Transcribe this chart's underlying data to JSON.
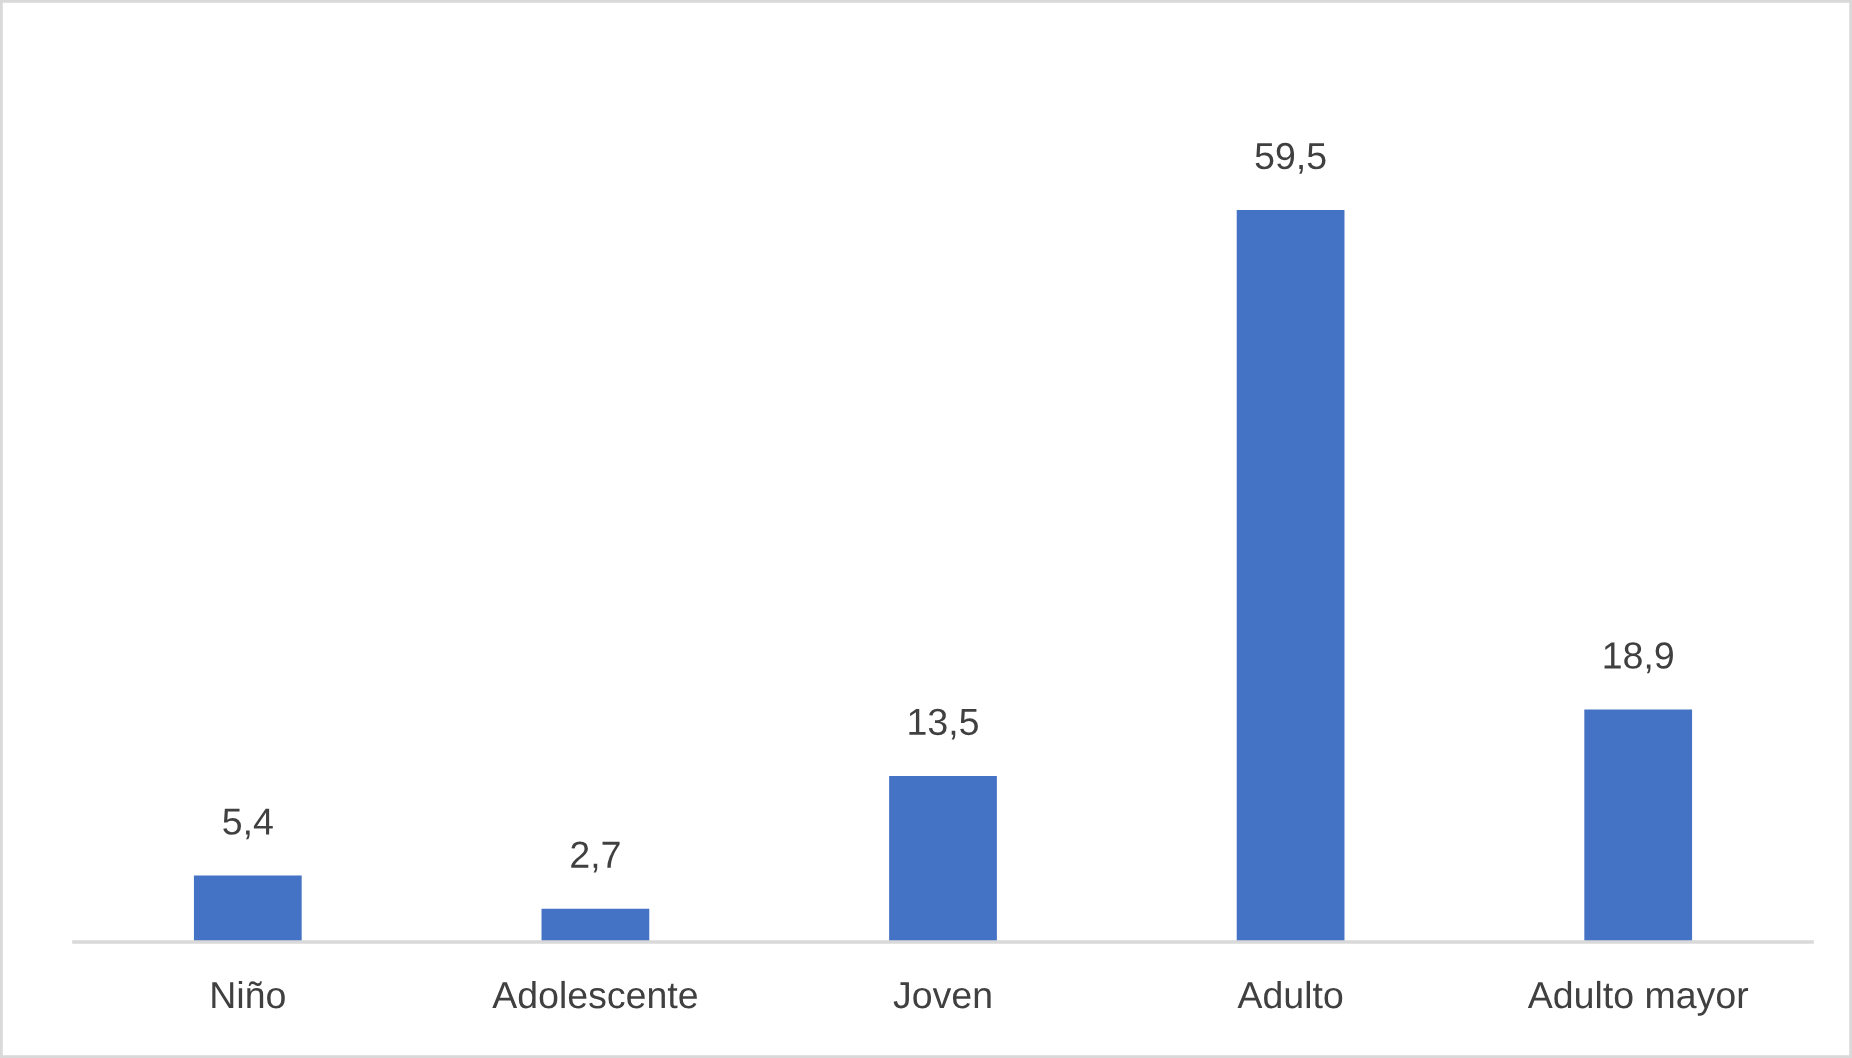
{
  "chart_data": {
    "type": "bar",
    "categories": [
      "Niño",
      "Adolescente",
      "Joven",
      "Adulto",
      "Adulto mayor"
    ],
    "values": [
      5.4,
      2.7,
      13.5,
      59.5,
      18.9
    ],
    "value_labels": [
      "5,4",
      "2,7",
      "13,5",
      "59,5",
      "18,9"
    ],
    "color": "#4472c4",
    "tick_labels": "x"
  }
}
